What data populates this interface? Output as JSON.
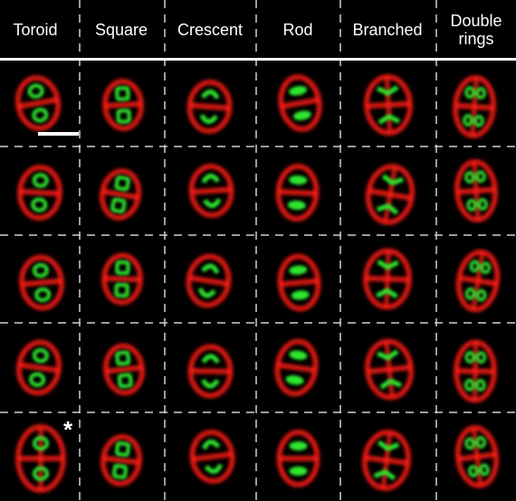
{
  "columns": [
    {
      "label": "Toroid"
    },
    {
      "label": "Square"
    },
    {
      "label": "Crescent"
    },
    {
      "label": "Rod"
    },
    {
      "label": "Branched"
    },
    {
      "label": "Double\nrings"
    }
  ],
  "annotations": {
    "asterisk": "*"
  },
  "colors": {
    "background": "#000000",
    "membrane": "#ff1a14",
    "nucleoid": "#2ee62e",
    "divider": "#cfcfcf",
    "header_rule": "#ffffff",
    "scale_bar": "#ffffff"
  },
  "grid": {
    "rows": 5,
    "cols": 6,
    "scale_bar": true
  }
}
